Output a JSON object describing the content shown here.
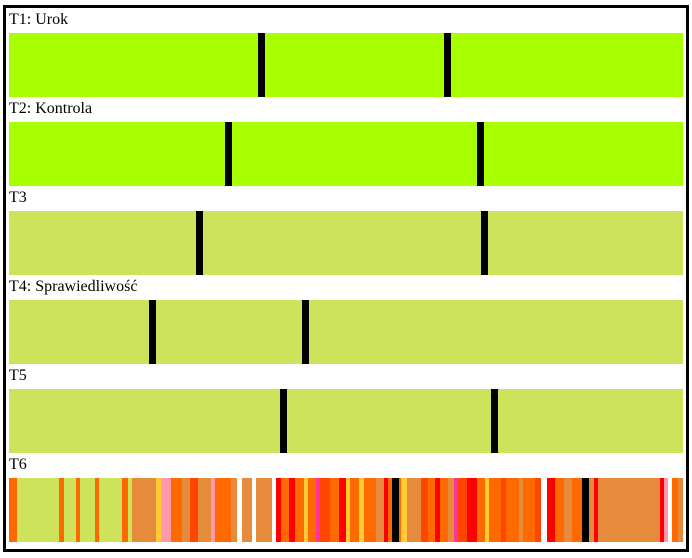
{
  "colors": {
    "bright_green": "#a8ff00",
    "olive_green": "#cde35b",
    "marker": "#000000",
    "t6_palette": [
      "#cde35b",
      "#e68a3c",
      "#ff6a00",
      "#ff0000",
      "#ffcc33",
      "#ff99aa",
      "#ff3399",
      "#ffffff",
      "#ff4500"
    ]
  },
  "tracks": [
    {
      "label": "T1: Urok",
      "color": "#a8ff00",
      "markers": [
        0.374,
        0.65
      ]
    },
    {
      "label": "T2: Kontrola",
      "color": "#a8ff00",
      "markers": [
        0.326,
        0.7
      ]
    },
    {
      "label": "T3",
      "color": "#cde35b",
      "markers": [
        0.282,
        0.705
      ]
    },
    {
      "label": "T4: Sprawiedliwość",
      "color": "#cde35b",
      "markers": [
        0.213,
        0.44
      ]
    },
    {
      "label": "T5",
      "color": "#cde35b",
      "markers": [
        0.408,
        0.72
      ]
    },
    {
      "label": "T6",
      "color": "mixed",
      "markers": [
        0.573,
        0.856
      ]
    }
  ],
  "t6_stripes": [
    {
      "from": 0.0,
      "to": 0.012,
      "color": "#ff6a00"
    },
    {
      "from": 0.012,
      "to": 0.074,
      "color": "#cde35b"
    },
    {
      "from": 0.074,
      "to": 0.082,
      "color": "#ff6a00"
    },
    {
      "from": 0.082,
      "to": 0.1,
      "color": "#cde35b"
    },
    {
      "from": 0.1,
      "to": 0.105,
      "color": "#ff6a00"
    },
    {
      "from": 0.105,
      "to": 0.128,
      "color": "#cde35b"
    },
    {
      "from": 0.128,
      "to": 0.134,
      "color": "#ff6a00"
    },
    {
      "from": 0.134,
      "to": 0.168,
      "color": "#cde35b"
    },
    {
      "from": 0.168,
      "to": 0.176,
      "color": "#ff6a00"
    },
    {
      "from": 0.176,
      "to": 0.182,
      "color": "#cde35b"
    },
    {
      "from": 0.182,
      "to": 0.218,
      "color": "#e68a3c"
    },
    {
      "from": 0.218,
      "to": 0.226,
      "color": "#ffcc33"
    },
    {
      "from": 0.226,
      "to": 0.24,
      "color": "#ff99aa"
    },
    {
      "from": 0.24,
      "to": 0.256,
      "color": "#ff6a00"
    },
    {
      "from": 0.256,
      "to": 0.268,
      "color": "#e68a3c"
    },
    {
      "from": 0.268,
      "to": 0.28,
      "color": "#ff4500"
    },
    {
      "from": 0.28,
      "to": 0.3,
      "color": "#e68a3c"
    },
    {
      "from": 0.3,
      "to": 0.306,
      "color": "#ff99aa"
    },
    {
      "from": 0.306,
      "to": 0.33,
      "color": "#ff6a00"
    },
    {
      "from": 0.33,
      "to": 0.338,
      "color": "#e68a3c"
    },
    {
      "from": 0.338,
      "to": 0.346,
      "color": "#ffffff"
    },
    {
      "from": 0.346,
      "to": 0.36,
      "color": "#e68a3c"
    },
    {
      "from": 0.36,
      "to": 0.366,
      "color": "#ffffff"
    },
    {
      "from": 0.366,
      "to": 0.39,
      "color": "#e68a3c"
    },
    {
      "from": 0.39,
      "to": 0.396,
      "color": "#ffffff"
    },
    {
      "from": 0.396,
      "to": 0.404,
      "color": "#ff0000"
    },
    {
      "from": 0.404,
      "to": 0.416,
      "color": "#ff6a00"
    },
    {
      "from": 0.416,
      "to": 0.424,
      "color": "#ff0000"
    },
    {
      "from": 0.424,
      "to": 0.438,
      "color": "#ff6a00"
    },
    {
      "from": 0.438,
      "to": 0.444,
      "color": "#ffcc33"
    },
    {
      "from": 0.444,
      "to": 0.456,
      "color": "#ff6a00"
    },
    {
      "from": 0.456,
      "to": 0.462,
      "color": "#ff3399"
    },
    {
      "from": 0.462,
      "to": 0.476,
      "color": "#ff4500"
    },
    {
      "from": 0.476,
      "to": 0.49,
      "color": "#ff6a00"
    },
    {
      "from": 0.49,
      "to": 0.5,
      "color": "#ff0000"
    },
    {
      "from": 0.5,
      "to": 0.506,
      "color": "#ffcc33"
    },
    {
      "from": 0.506,
      "to": 0.52,
      "color": "#ff6a00"
    },
    {
      "from": 0.52,
      "to": 0.526,
      "color": "#ffcc33"
    },
    {
      "from": 0.526,
      "to": 0.544,
      "color": "#ff6a00"
    },
    {
      "from": 0.544,
      "to": 0.556,
      "color": "#e68a3c"
    },
    {
      "from": 0.556,
      "to": 0.562,
      "color": "#ff0000"
    },
    {
      "from": 0.562,
      "to": 0.582,
      "color": "#ff6a00"
    },
    {
      "from": 0.582,
      "to": 0.59,
      "color": "#ffcc33"
    },
    {
      "from": 0.59,
      "to": 0.612,
      "color": "#e68a3c"
    },
    {
      "from": 0.612,
      "to": 0.622,
      "color": "#ff4500"
    },
    {
      "from": 0.622,
      "to": 0.632,
      "color": "#ff6a00"
    },
    {
      "from": 0.632,
      "to": 0.64,
      "color": "#ff0000"
    },
    {
      "from": 0.64,
      "to": 0.652,
      "color": "#ff6a00"
    },
    {
      "from": 0.652,
      "to": 0.66,
      "color": "#e68a3c"
    },
    {
      "from": 0.66,
      "to": 0.666,
      "color": "#ff3399"
    },
    {
      "from": 0.666,
      "to": 0.68,
      "color": "#ff4500"
    },
    {
      "from": 0.68,
      "to": 0.694,
      "color": "#ff0000"
    },
    {
      "from": 0.694,
      "to": 0.706,
      "color": "#ff6a00"
    },
    {
      "from": 0.706,
      "to": 0.712,
      "color": "#ffcc33"
    },
    {
      "from": 0.712,
      "to": 0.73,
      "color": "#ff6a00"
    },
    {
      "from": 0.73,
      "to": 0.738,
      "color": "#ff4500"
    },
    {
      "from": 0.738,
      "to": 0.756,
      "color": "#ff6a00"
    },
    {
      "from": 0.756,
      "to": 0.762,
      "color": "#e68a3c"
    },
    {
      "from": 0.762,
      "to": 0.78,
      "color": "#ff6a00"
    },
    {
      "from": 0.78,
      "to": 0.79,
      "color": "#ff4500"
    },
    {
      "from": 0.79,
      "to": 0.798,
      "color": "#ffffff"
    },
    {
      "from": 0.798,
      "to": 0.81,
      "color": "#ff0000"
    },
    {
      "from": 0.81,
      "to": 0.824,
      "color": "#ff6a00"
    },
    {
      "from": 0.824,
      "to": 0.836,
      "color": "#e68a3c"
    },
    {
      "from": 0.836,
      "to": 0.85,
      "color": "#ff6a00"
    },
    {
      "from": 0.85,
      "to": 0.868,
      "color": "#e68a3c"
    },
    {
      "from": 0.868,
      "to": 0.874,
      "color": "#ff0000"
    },
    {
      "from": 0.874,
      "to": 0.966,
      "color": "#e68a3c"
    },
    {
      "from": 0.966,
      "to": 0.972,
      "color": "#ff0000"
    },
    {
      "from": 0.972,
      "to": 0.978,
      "color": "#ff99aa"
    },
    {
      "from": 0.978,
      "to": 0.984,
      "color": "#ffffff"
    },
    {
      "from": 0.984,
      "to": 0.992,
      "color": "#ff6a00"
    },
    {
      "from": 0.992,
      "to": 1.0,
      "color": "#e68a3c"
    }
  ]
}
